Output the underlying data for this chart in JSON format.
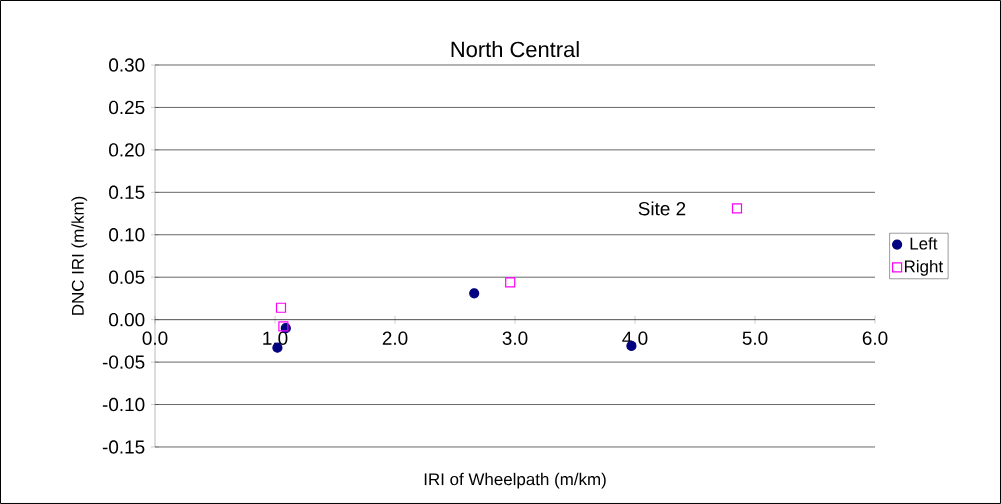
{
  "chart_data": {
    "type": "scatter",
    "title": "North Central",
    "xlabel": "IRI of Wheelpath (m/km)",
    "ylabel": "DNC IRI (m/km)",
    "series": [
      {
        "name": "Left",
        "color": "#000080",
        "marker": "circle",
        "x": [
          1.02,
          1.09,
          2.66,
          3.97
        ],
        "values": [
          -0.033,
          -0.01,
          0.031,
          -0.031
        ]
      },
      {
        "name": "Right",
        "color": "#ff00ff",
        "marker": "square",
        "x": [
          1.05,
          1.07,
          2.96,
          4.85
        ],
        "values": [
          0.014,
          -0.008,
          0.044,
          0.131
        ]
      }
    ],
    "annotations": [
      {
        "text": "Site 2",
        "x": 4.85,
        "y": 0.131
      }
    ],
    "xlim": [
      0,
      6
    ],
    "ylim": [
      -0.15,
      0.3
    ],
    "xticks": [
      {
        "value": 0,
        "label": "0.0"
      },
      {
        "value": 1,
        "label": "1.0"
      },
      {
        "value": 2,
        "label": "2.0"
      },
      {
        "value": 3,
        "label": "3.0"
      },
      {
        "value": 4,
        "label": "4.0"
      },
      {
        "value": 5,
        "label": "5.0"
      },
      {
        "value": 6,
        "label": "6.0"
      }
    ],
    "yticks": [
      {
        "value": -0.15,
        "label": "-0.15"
      },
      {
        "value": -0.1,
        "label": "-0.10"
      },
      {
        "value": -0.05,
        "label": "-0.05"
      },
      {
        "value": 0,
        "label": "0.00"
      },
      {
        "value": 0.05,
        "label": "0.05"
      },
      {
        "value": 0.1,
        "label": "0.10"
      },
      {
        "value": 0.15,
        "label": "0.15"
      },
      {
        "value": 0.2,
        "label": "0.20"
      },
      {
        "value": 0.25,
        "label": "0.25"
      },
      {
        "value": 0.3,
        "label": "0.30"
      }
    ],
    "grid": "y",
    "legend": "right"
  }
}
